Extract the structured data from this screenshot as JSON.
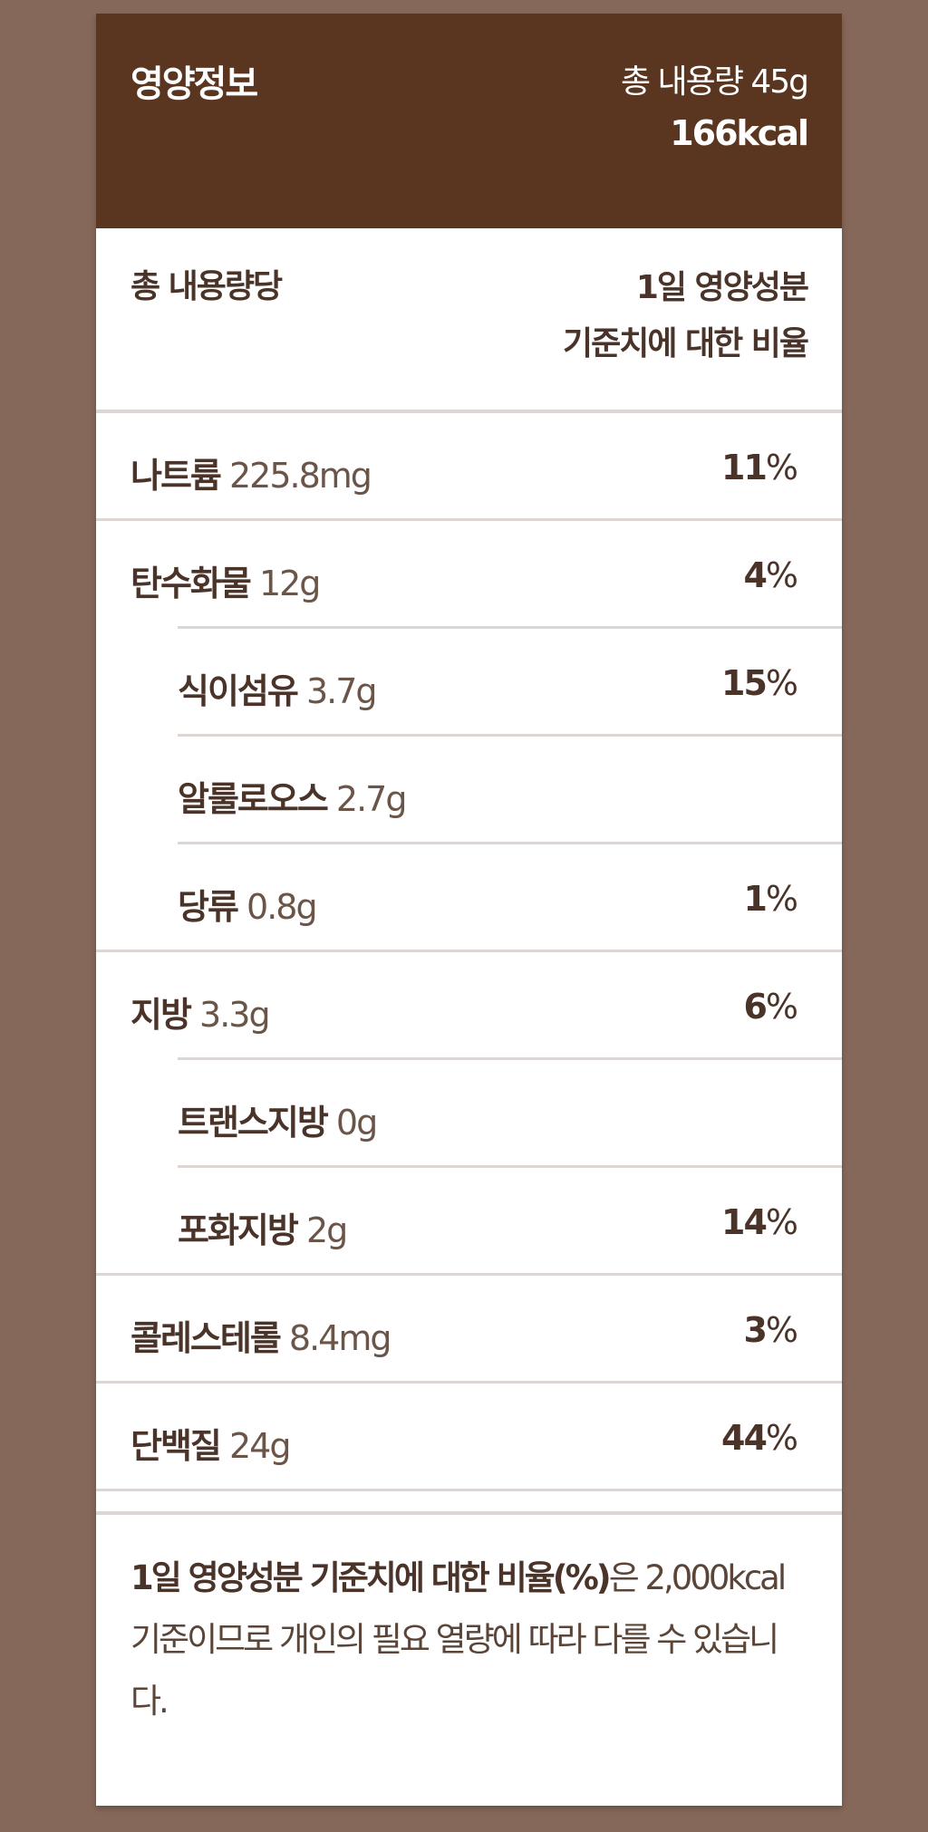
{
  "header": {
    "title": "영양정보",
    "total": "총 내용량 45g",
    "kcal": "166kcal"
  },
  "subheader": {
    "left": "총 내용량당",
    "right_line1": "1일 영양성분",
    "right_line2": "기준치에 대한 비율"
  },
  "rows": [
    {
      "name": "나트륨",
      "amount": "225.8mg",
      "percent": "11",
      "indent": false
    },
    {
      "name": "탄수화물",
      "amount": "12g",
      "percent": "4",
      "indent": false
    },
    {
      "name": "식이섬유",
      "amount": "3.7g",
      "percent": "15",
      "indent": true
    },
    {
      "name": "알룰로오스",
      "amount": "2.7g",
      "percent": "",
      "indent": true
    },
    {
      "name": "당류",
      "amount": "0.8g",
      "percent": "1",
      "indent": true
    },
    {
      "name": "지방",
      "amount": "3.3g",
      "percent": "6",
      "indent": false
    },
    {
      "name": "트랜스지방",
      "amount": "0g",
      "percent": "",
      "indent": true
    },
    {
      "name": "포화지방",
      "amount": "2g",
      "percent": "14",
      "indent": true
    },
    {
      "name": "콜레스테롤",
      "amount": "8.4mg",
      "percent": "3",
      "indent": false
    },
    {
      "name": "단백질",
      "amount": "24g",
      "percent": "44",
      "indent": false
    }
  ],
  "percent_sign": "%",
  "footer": {
    "bold": "1일 영양성분 기준치에 대한 비율(%)",
    "rest": "은 2,000kcal 기준이므로 개인의 필요 열량에 따라 다를 수 있습니다."
  },
  "colors": {
    "background": "#86685a",
    "header": "#5a3520",
    "text": "#4a3328"
  }
}
